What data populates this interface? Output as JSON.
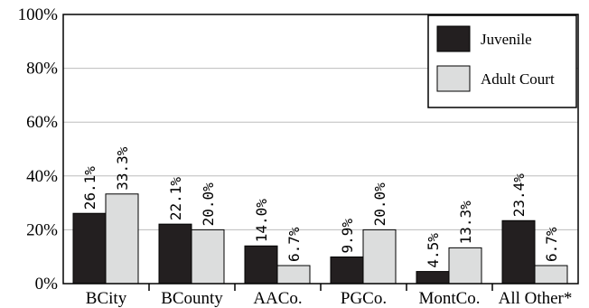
{
  "chart_data": {
    "type": "bar",
    "categories": [
      "BCity",
      "BCounty",
      "AACo.",
      "PGCo.",
      "MontCo.",
      "All Other*"
    ],
    "series": [
      {
        "name": "Juvenile",
        "values": [
          26.1,
          22.1,
          14.0,
          9.9,
          4.5,
          23.4
        ],
        "labels": [
          "26.1%",
          "22.1%",
          "14.0%",
          "9.9%",
          "4.5%",
          "23.4%"
        ],
        "color": "#231f20"
      },
      {
        "name": "Adult Court",
        "values": [
          33.3,
          20.0,
          6.7,
          20.0,
          13.3,
          6.7
        ],
        "labels": [
          "33.3%",
          "20.0%",
          "6.7%",
          "20.0%",
          "13.3%",
          "6.7%"
        ],
        "color": "#dcdddd"
      }
    ],
    "ylim": [
      0,
      100
    ],
    "yticks": [
      "0%",
      "20%",
      "40%",
      "60%",
      "80%",
      "100%"
    ],
    "grid": true,
    "legend_position": "top-right"
  }
}
